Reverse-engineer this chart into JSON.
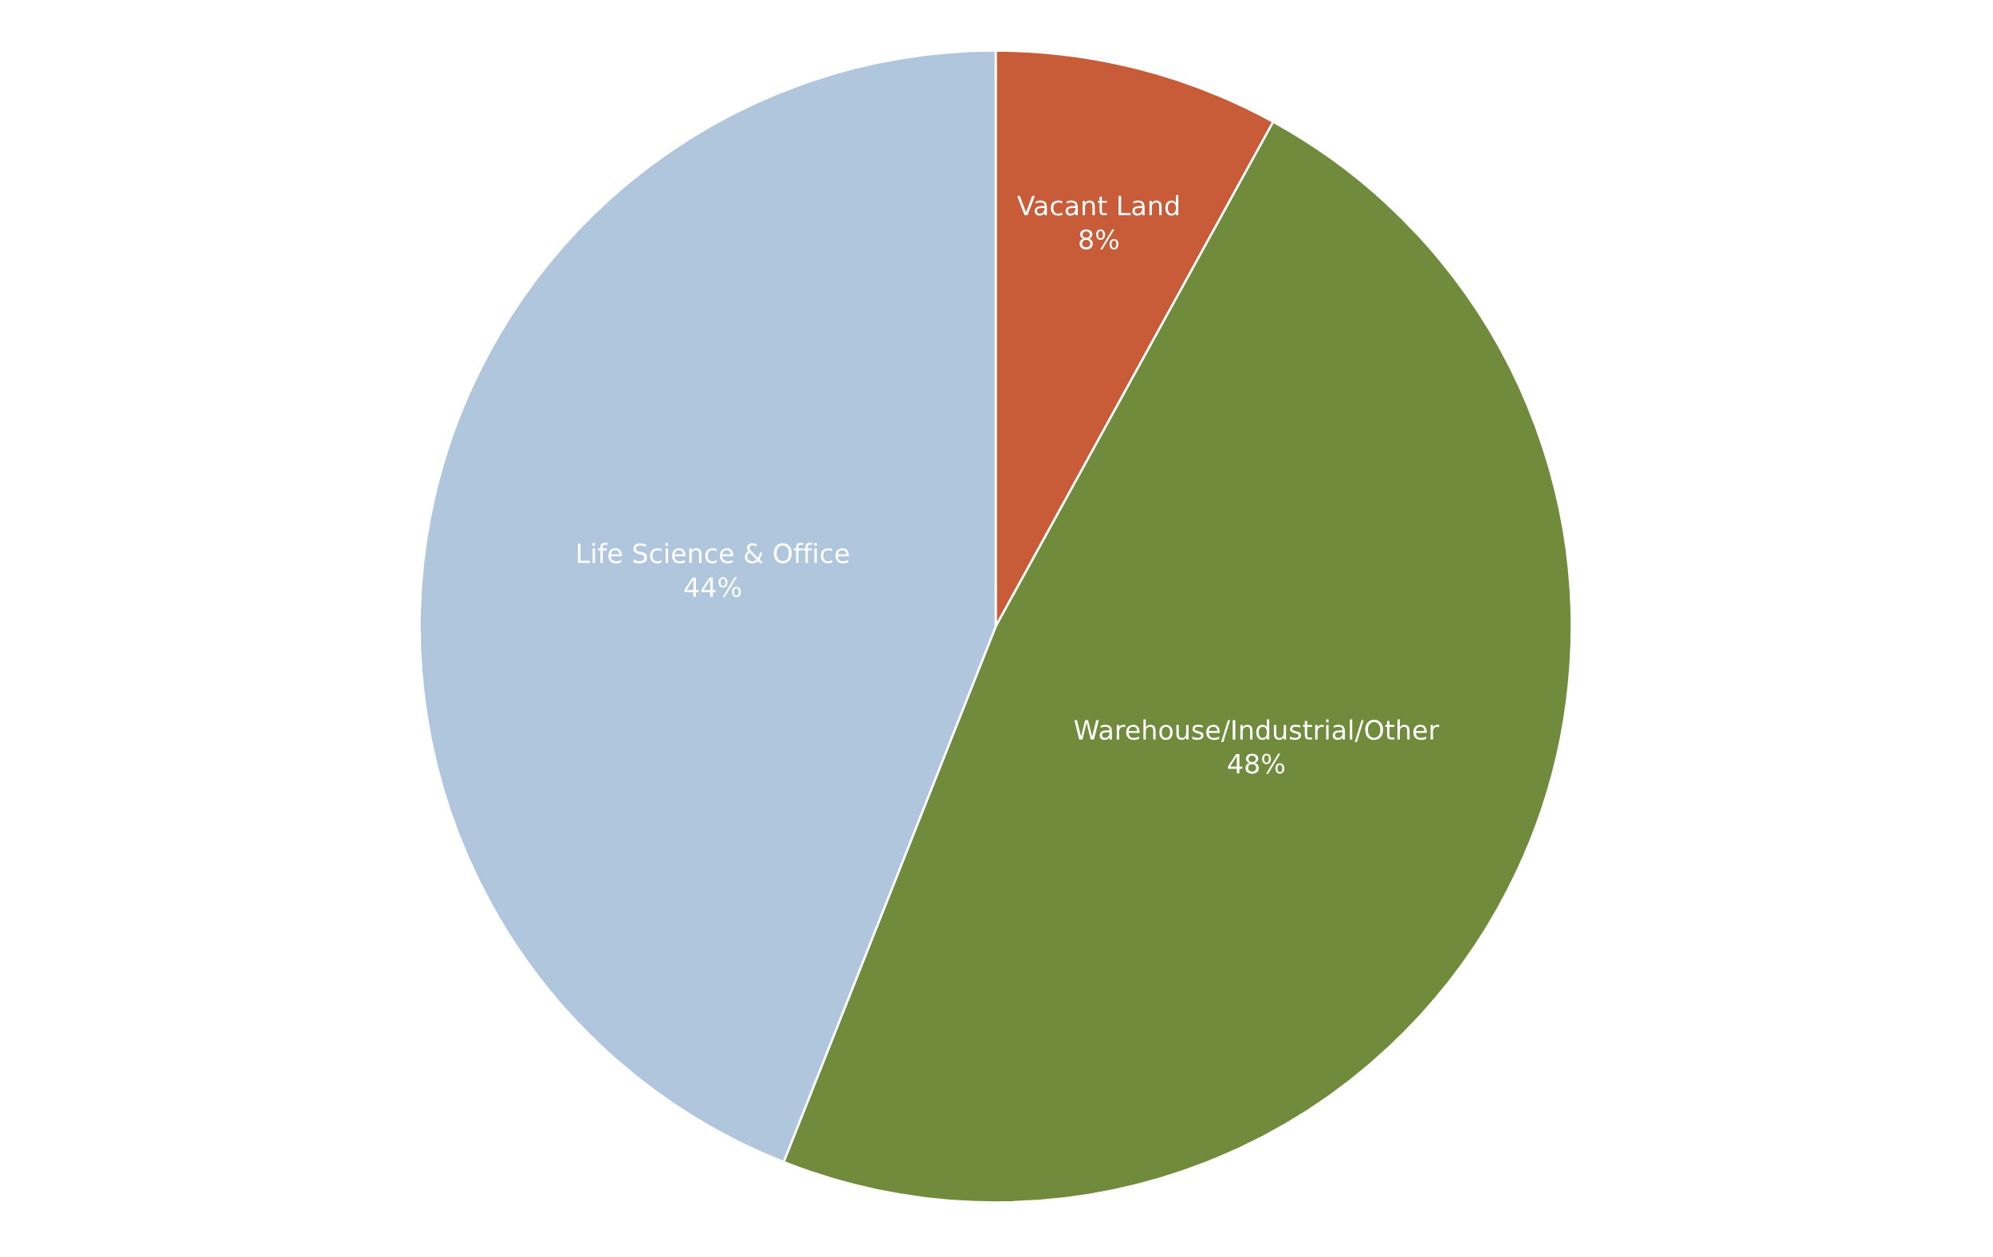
{
  "chart_data": {
    "type": "pie",
    "categories": [
      "Vacant Land",
      "Warehouse/Industrial/Other",
      "Life Science & Office"
    ],
    "values": [
      8,
      48,
      44
    ],
    "value_labels": [
      "8%",
      "48%",
      "44%"
    ],
    "colors": [
      "#c85b38",
      "#718b3d",
      "#b0c6dd"
    ]
  }
}
